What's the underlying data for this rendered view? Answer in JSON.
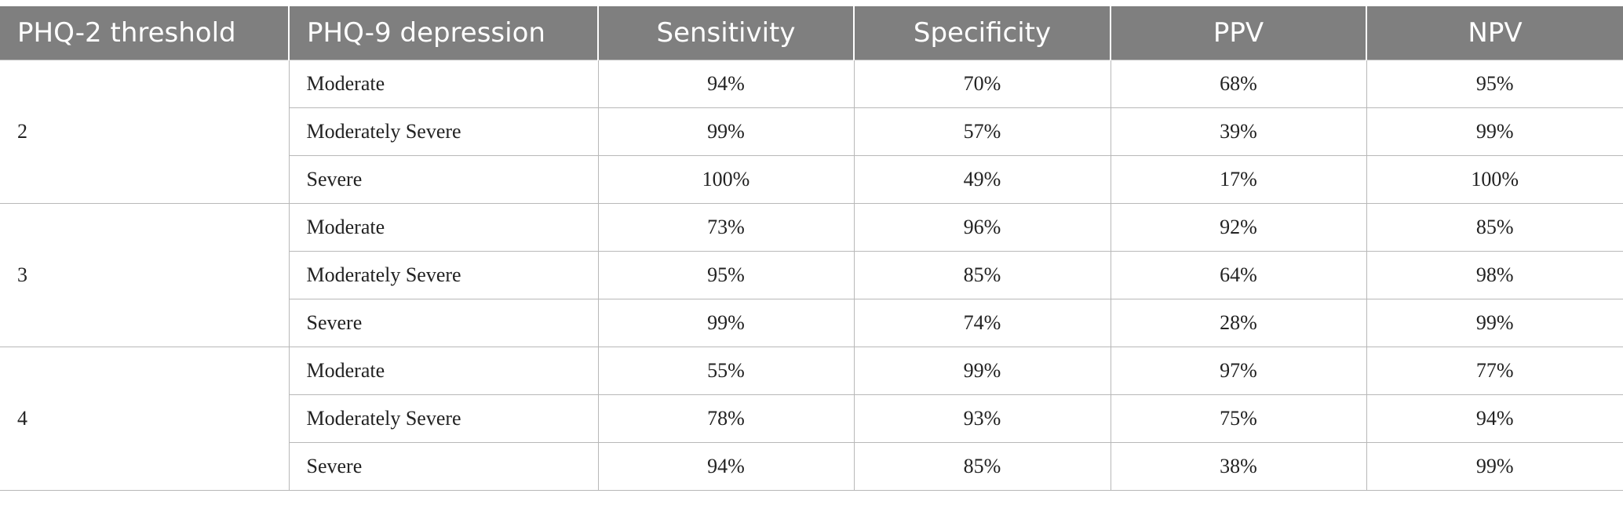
{
  "table": {
    "headers": [
      "PHQ-2 threshold",
      "PHQ-9 depression",
      "Sensitivity",
      "Specificity",
      "PPV",
      "NPV"
    ],
    "groups": [
      {
        "threshold": "2",
        "rows": [
          {
            "level": "Moderate",
            "values": [
              "94%",
              "70%",
              "68%",
              "95%"
            ]
          },
          {
            "level": "Moderately Severe",
            "values": [
              "99%",
              "57%",
              "39%",
              "99%"
            ]
          },
          {
            "level": "Severe",
            "values": [
              "100%",
              "49%",
              "17%",
              "100%"
            ]
          }
        ]
      },
      {
        "threshold": "3",
        "rows": [
          {
            "level": "Moderate",
            "values": [
              "73%",
              "96%",
              "92%",
              "85%"
            ]
          },
          {
            "level": "Moderately Severe",
            "values": [
              "95%",
              "85%",
              "64%",
              "98%"
            ]
          },
          {
            "level": "Severe",
            "values": [
              "99%",
              "74%",
              "28%",
              "99%"
            ]
          }
        ]
      },
      {
        "threshold": "4",
        "rows": [
          {
            "level": "Moderate",
            "values": [
              "55%",
              "99%",
              "97%",
              "77%"
            ]
          },
          {
            "level": "Moderately Severe",
            "values": [
              "78%",
              "93%",
              "75%",
              "94%"
            ]
          },
          {
            "level": "Severe",
            "values": [
              "94%",
              "85%",
              "38%",
              "99%"
            ]
          }
        ]
      }
    ]
  }
}
